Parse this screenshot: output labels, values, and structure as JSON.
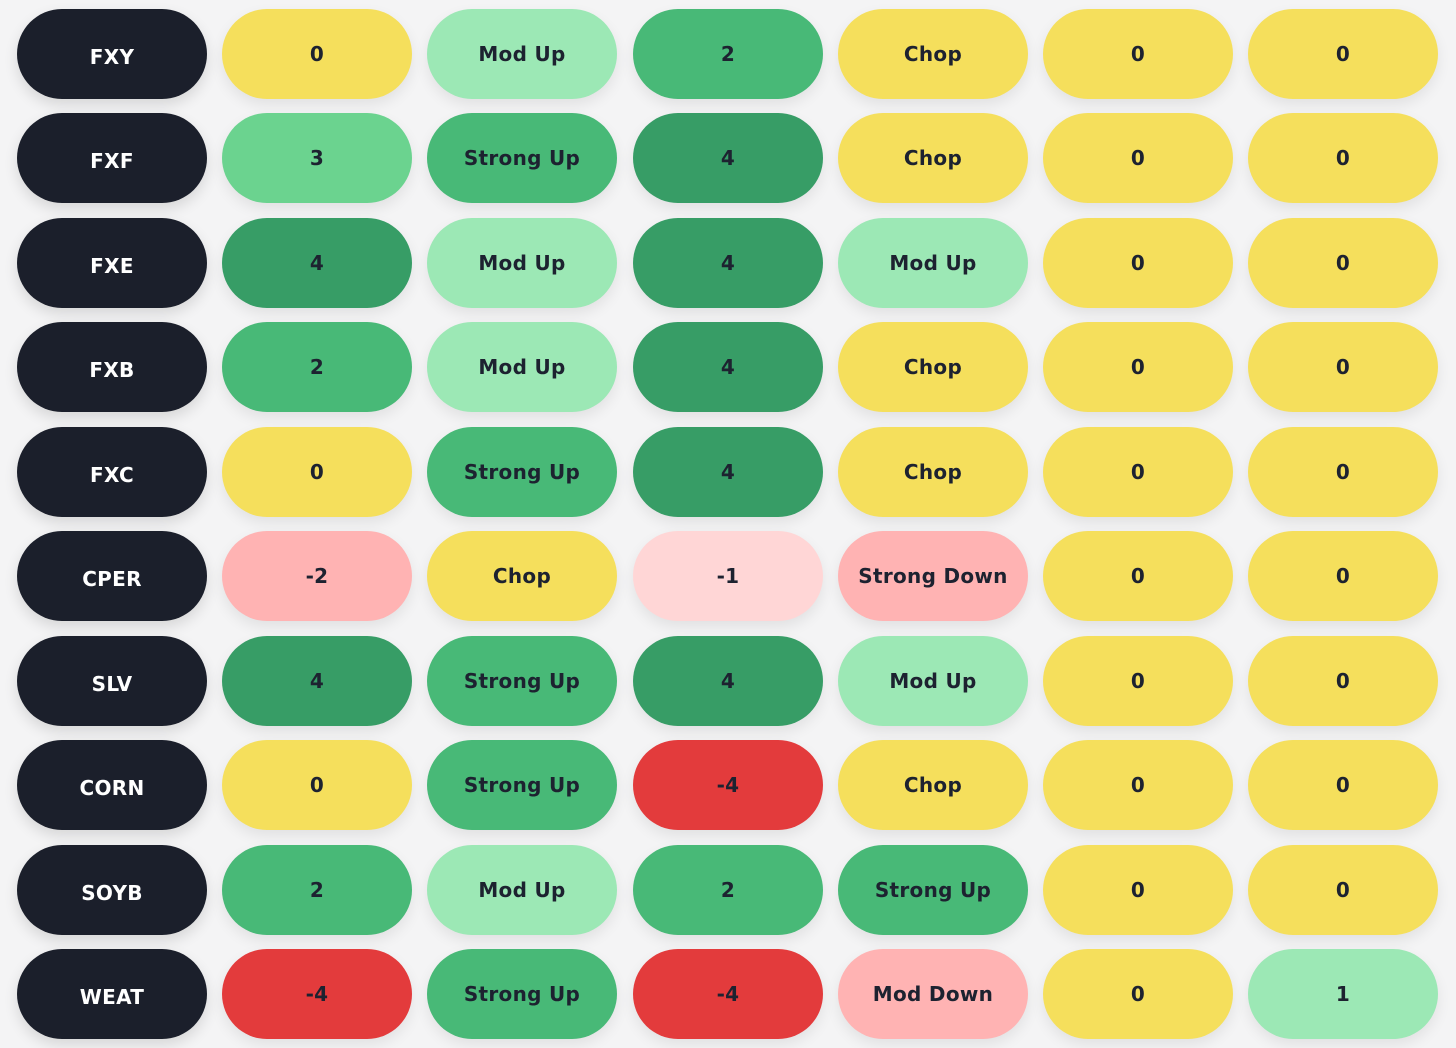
{
  "rows": [
    {
      "ticker": "FXY",
      "cells": [
        {
          "text": "0",
          "color": "#f5df5c"
        },
        {
          "text": "Mod Up",
          "color": "#9ce8b5"
        },
        {
          "text": "2",
          "color": "#48b977"
        },
        {
          "text": "Chop",
          "color": "#f5df5c"
        },
        {
          "text": "0",
          "color": "#f5df5c"
        },
        {
          "text": "0",
          "color": "#f5df5c"
        }
      ]
    },
    {
      "ticker": "FXF",
      "cells": [
        {
          "text": "3",
          "color": "#6bd38f"
        },
        {
          "text": "Strong Up",
          "color": "#48b977"
        },
        {
          "text": "4",
          "color": "#379d66"
        },
        {
          "text": "Chop",
          "color": "#f5df5c"
        },
        {
          "text": "0",
          "color": "#f5df5c"
        },
        {
          "text": "0",
          "color": "#f5df5c"
        }
      ]
    },
    {
      "ticker": "FXE",
      "cells": [
        {
          "text": "4",
          "color": "#379d66"
        },
        {
          "text": "Mod Up",
          "color": "#9ce8b5"
        },
        {
          "text": "4",
          "color": "#379d66"
        },
        {
          "text": "Mod Up",
          "color": "#9ce8b5"
        },
        {
          "text": "0",
          "color": "#f5df5c"
        },
        {
          "text": "0",
          "color": "#f5df5c"
        }
      ]
    },
    {
      "ticker": "FXB",
      "cells": [
        {
          "text": "2",
          "color": "#48b977"
        },
        {
          "text": "Mod Up",
          "color": "#9ce8b5"
        },
        {
          "text": "4",
          "color": "#379d66"
        },
        {
          "text": "Chop",
          "color": "#f5df5c"
        },
        {
          "text": "0",
          "color": "#f5df5c"
        },
        {
          "text": "0",
          "color": "#f5df5c"
        }
      ]
    },
    {
      "ticker": "FXC",
      "cells": [
        {
          "text": "0",
          "color": "#f5df5c"
        },
        {
          "text": "Strong Up",
          "color": "#48b977"
        },
        {
          "text": "4",
          "color": "#379d66"
        },
        {
          "text": "Chop",
          "color": "#f5df5c"
        },
        {
          "text": "0",
          "color": "#f5df5c"
        },
        {
          "text": "0",
          "color": "#f5df5c"
        }
      ]
    },
    {
      "ticker": "CPER",
      "cells": [
        {
          "text": "-2",
          "color": "#ffb3b3"
        },
        {
          "text": "Chop",
          "color": "#f5df5c"
        },
        {
          "text": "-1",
          "color": "#ffd6d6"
        },
        {
          "text": "Strong Down",
          "color": "#ffb3b3"
        },
        {
          "text": "0",
          "color": "#f5df5c"
        },
        {
          "text": "0",
          "color": "#f5df5c"
        }
      ]
    },
    {
      "ticker": "SLV",
      "cells": [
        {
          "text": "4",
          "color": "#379d66"
        },
        {
          "text": "Strong Up",
          "color": "#48b977"
        },
        {
          "text": "4",
          "color": "#379d66"
        },
        {
          "text": "Mod Up",
          "color": "#9ce8b5"
        },
        {
          "text": "0",
          "color": "#f5df5c"
        },
        {
          "text": "0",
          "color": "#f5df5c"
        }
      ]
    },
    {
      "ticker": "CORN",
      "cells": [
        {
          "text": "0",
          "color": "#f5df5c"
        },
        {
          "text": "Strong Up",
          "color": "#48b977"
        },
        {
          "text": "-4",
          "color": "#e33b3c"
        },
        {
          "text": "Chop",
          "color": "#f5df5c"
        },
        {
          "text": "0",
          "color": "#f5df5c"
        },
        {
          "text": "0",
          "color": "#f5df5c"
        }
      ]
    },
    {
      "ticker": "SOYB",
      "cells": [
        {
          "text": "2",
          "color": "#48b977"
        },
        {
          "text": "Mod Up",
          "color": "#9ce8b5"
        },
        {
          "text": "2",
          "color": "#48b977"
        },
        {
          "text": "Strong Up",
          "color": "#48b977"
        },
        {
          "text": "0",
          "color": "#f5df5c"
        },
        {
          "text": "0",
          "color": "#f5df5c"
        }
      ]
    },
    {
      "ticker": "WEAT",
      "cells": [
        {
          "text": "-4",
          "color": "#e33b3c"
        },
        {
          "text": "Strong Up",
          "color": "#48b977"
        },
        {
          "text": "-4",
          "color": "#e33b3c"
        },
        {
          "text": "Mod Down",
          "color": "#ffb3b3"
        },
        {
          "text": "0",
          "color": "#f5df5c"
        },
        {
          "text": "1",
          "color": "#9ce8b5"
        }
      ]
    }
  ]
}
